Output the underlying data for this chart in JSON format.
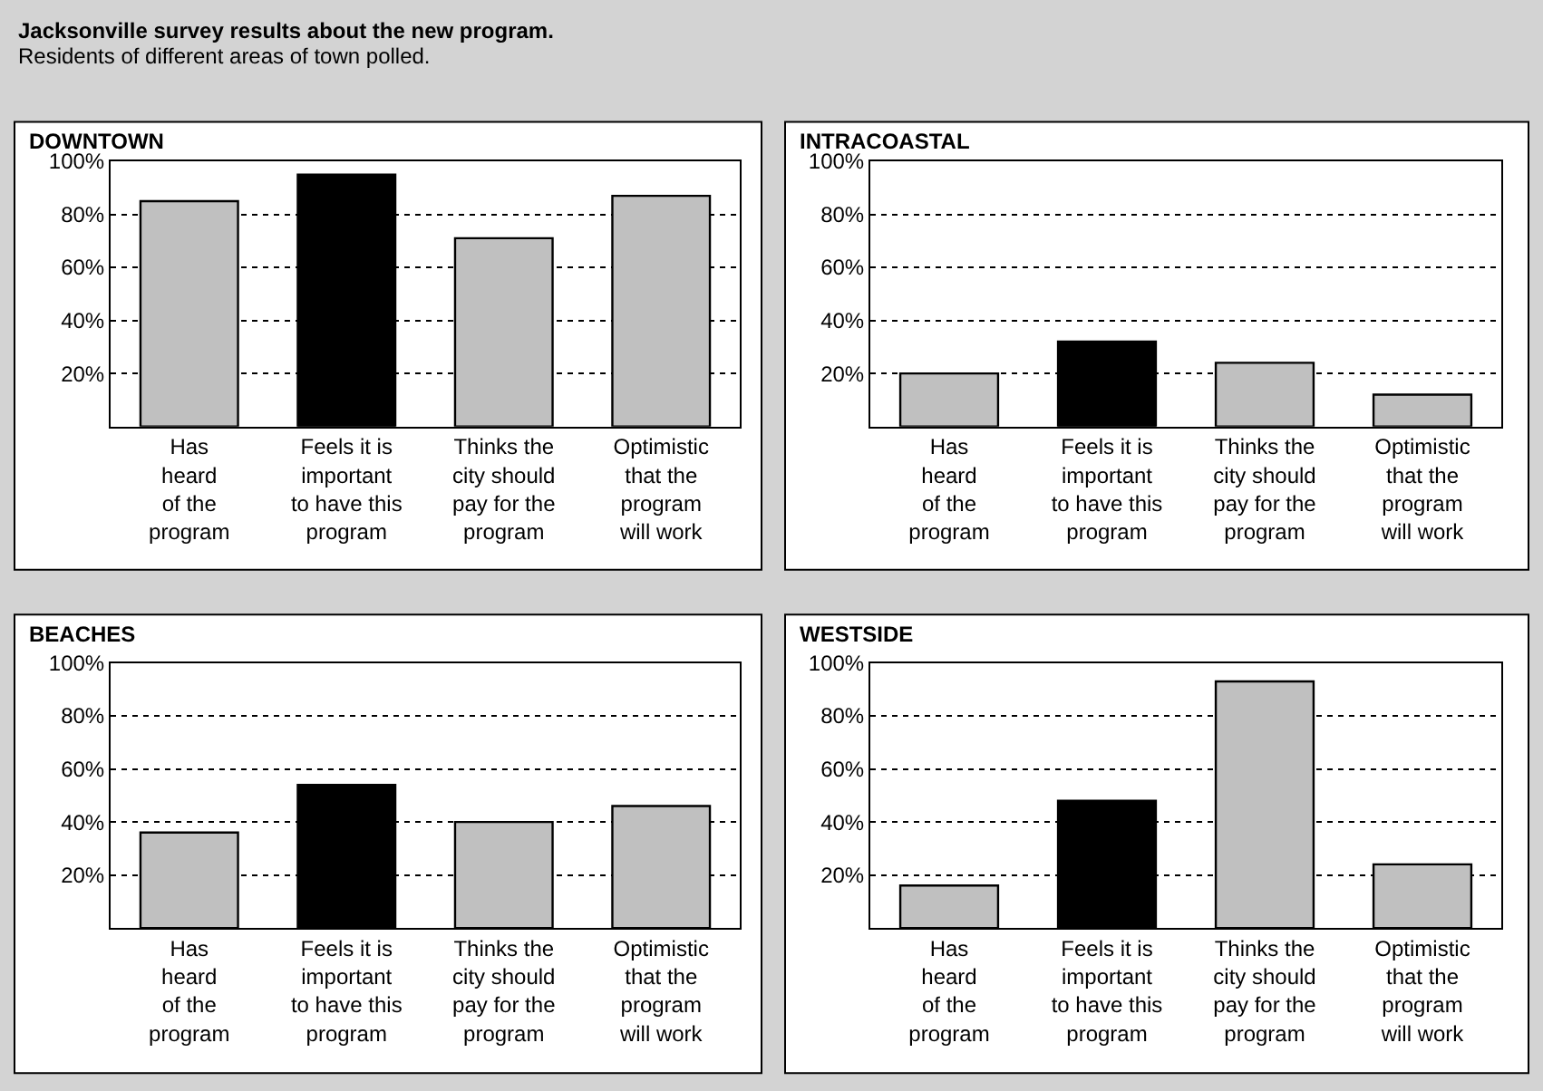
{
  "chart_data": [
    {
      "type": "other",
      "title": "Jacksonville survey results about the new program.",
      "subtitle": "Residents of different areas of town polled."
    },
    {
      "type": "bar",
      "title": "DOWNTOWN",
      "categories": [
        "Has\nheard\nof the\nprogram",
        "Feels it is\nimportant\nto have this\nprogram",
        "Thinks the\ncity should\npay for the\nprogram",
        "Optimistic\nthat the\nprogram\nwill work"
      ],
      "values": [
        85,
        95,
        71,
        87
      ],
      "colors": [
        "#c0c0c0",
        "#000000",
        "#c0c0c0",
        "#c0c0c0"
      ],
      "ylim": [
        0,
        100
      ],
      "yticks": [
        {
          "value": 20,
          "label": "20%"
        },
        {
          "value": 40,
          "label": "40%"
        },
        {
          "value": 60,
          "label": "60%"
        },
        {
          "value": 80,
          "label": "80%"
        },
        {
          "value": 100,
          "label": "100%"
        }
      ],
      "grid": "y"
    },
    {
      "type": "bar",
      "title": "INTRACOASTAL",
      "categories": [
        "Has\nheard\nof the\nprogram",
        "Feels it is\nimportant\nto have this\nprogram",
        "Thinks the\ncity should\npay for the\nprogram",
        "Optimistic\nthat the\nprogram\nwill work"
      ],
      "values": [
        20,
        32,
        24,
        12
      ],
      "colors": [
        "#c0c0c0",
        "#000000",
        "#c0c0c0",
        "#c0c0c0"
      ],
      "ylim": [
        0,
        100
      ],
      "yticks": [
        {
          "value": 20,
          "label": "20%"
        },
        {
          "value": 40,
          "label": "40%"
        },
        {
          "value": 60,
          "label": "60%"
        },
        {
          "value": 80,
          "label": "80%"
        },
        {
          "value": 100,
          "label": "100%"
        }
      ],
      "grid": "y"
    },
    {
      "type": "bar",
      "title": "BEACHES",
      "categories": [
        "Has\nheard\nof the\nprogram",
        "Feels it is\nimportant\nto have this\nprogram",
        "Thinks the\ncity should\npay for the\nprogram",
        "Optimistic\nthat the\nprogram\nwill work"
      ],
      "values": [
        36,
        54,
        40,
        46
      ],
      "colors": [
        "#c0c0c0",
        "#000000",
        "#c0c0c0",
        "#c0c0c0"
      ],
      "ylim": [
        0,
        100
      ],
      "yticks": [
        {
          "value": 20,
          "label": "20%"
        },
        {
          "value": 40,
          "label": "40%"
        },
        {
          "value": 60,
          "label": "60%"
        },
        {
          "value": 80,
          "label": "80%"
        },
        {
          "value": 100,
          "label": "100%"
        }
      ],
      "grid": "y"
    },
    {
      "type": "bar",
      "title": "WESTSIDE",
      "categories": [
        "Has\nheard\nof the\nprogram",
        "Feels it is\nimportant\nto have this\nprogram",
        "Thinks the\ncity should\npay for the\nprogram",
        "Optimistic\nthat the\nprogram\nwill work"
      ],
      "values": [
        16,
        48,
        93,
        24
      ],
      "colors": [
        "#c0c0c0",
        "#000000",
        "#c0c0c0",
        "#c0c0c0"
      ],
      "ylim": [
        0,
        100
      ],
      "yticks": [
        {
          "value": 20,
          "label": "20%"
        },
        {
          "value": 40,
          "label": "40%"
        },
        {
          "value": 60,
          "label": "60%"
        },
        {
          "value": 80,
          "label": "80%"
        },
        {
          "value": 100,
          "label": "100%"
        }
      ],
      "grid": "y"
    }
  ]
}
